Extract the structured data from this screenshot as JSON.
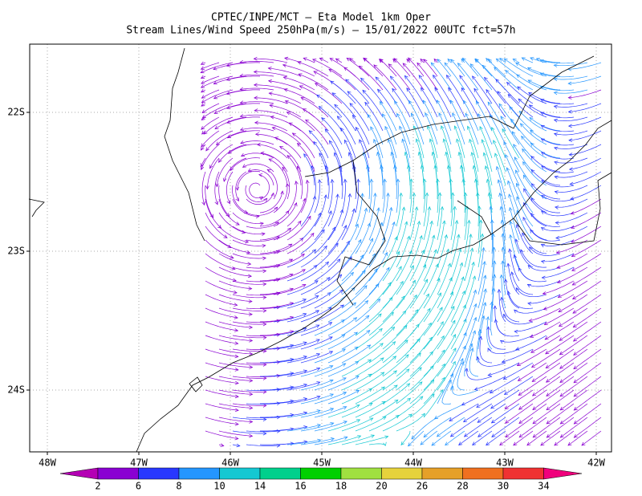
{
  "header": {
    "title": "CPTEC/INPE/MCT –  Eta Model 1km Oper",
    "subtitle": "Stream Lines/Wind Speed 250hPa(m/s) – 15/01/2022 00UTC fct=57h"
  },
  "map": {
    "lon_labels": [
      "48W",
      "47W",
      "46W",
      "45W",
      "44W",
      "43W",
      "42W"
    ],
    "lat_labels": [
      "22S",
      "23S",
      "24S"
    ]
  },
  "colorbar": {
    "labels": [
      "2",
      "6",
      "8",
      "10",
      "14",
      "16",
      "18",
      "20",
      "26",
      "28",
      "30",
      "34"
    ],
    "colors": [
      "#b400b4",
      "#8a00d2",
      "#2838ff",
      "#2496ff",
      "#14c8d2",
      "#00d08c",
      "#00d000",
      "#a0e040",
      "#e6d23c",
      "#e6a028",
      "#f07020",
      "#f03232",
      "#f0007c"
    ]
  }
}
